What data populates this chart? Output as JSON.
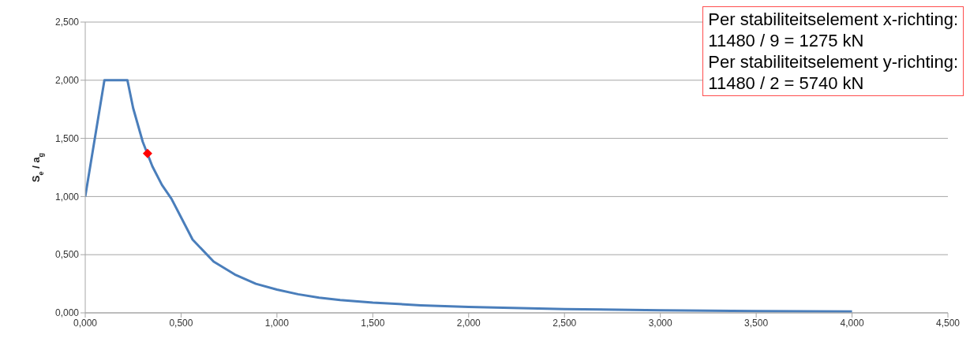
{
  "chart_data": {
    "type": "line",
    "ylabel": "S$_{e}$ / a$_{g}$",
    "annotations": [
      "Per stabiliteitselement x-richting:",
      "11480 / 9 = 1275 kN",
      "Per stabiliteitselement y-richting:",
      "11480 / 2 = 5740 kN"
    ],
    "series": [
      {
        "color": "#4a7ebb",
        "x": [
          0,
          0.1,
          0.22,
          0.25,
          0.3,
          0.35,
          0.4,
          0.45,
          0.56,
          0.67,
          0.78,
          0.89,
          1.0,
          1.11,
          1.22,
          1.33,
          1.5,
          1.75,
          2.0,
          2.5,
          3.0,
          3.5,
          4.0
        ],
        "values": [
          1,
          2,
          2,
          1.76,
          1.47,
          1.26,
          1.1,
          0.98,
          0.63,
          0.44,
          0.33,
          0.25,
          0.2,
          0.16,
          0.13,
          0.11,
          0.088,
          0.065,
          0.05,
          0.032,
          0.022,
          0.016,
          0.012
        ]
      },
      {
        "type": "scatter",
        "color": "#ff0000",
        "marker": "diamond",
        "x": [
          0.325
        ],
        "values": [
          1.37
        ]
      }
    ],
    "xlim": [
      0,
      4.5
    ],
    "ylim": [
      0,
      2.5
    ],
    "xticks": [
      {
        "value": 0,
        "label": "0,000"
      },
      {
        "value": 0.5,
        "label": "0,500"
      },
      {
        "value": 1,
        "label": "1,000"
      },
      {
        "value": 1.5,
        "label": "1,500"
      },
      {
        "value": 2,
        "label": "2,000"
      },
      {
        "value": 2.5,
        "label": "2,500"
      },
      {
        "value": 3,
        "label": "3,000"
      },
      {
        "value": 3.5,
        "label": "3,500"
      },
      {
        "value": 4,
        "label": "4,000"
      },
      {
        "value": 4.5,
        "label": "4,500"
      }
    ],
    "yticks": [
      {
        "value": 0,
        "label": "0,000"
      },
      {
        "value": 0.5,
        "label": "0,500"
      },
      {
        "value": 1,
        "label": "1,000"
      },
      {
        "value": 1.5,
        "label": "1,500"
      },
      {
        "value": 2,
        "label": "2,000"
      },
      {
        "value": 2.5,
        "label": "2,500"
      }
    ],
    "grid": "y",
    "marker": "none",
    "line_style": "solid",
    "legend": false
  }
}
